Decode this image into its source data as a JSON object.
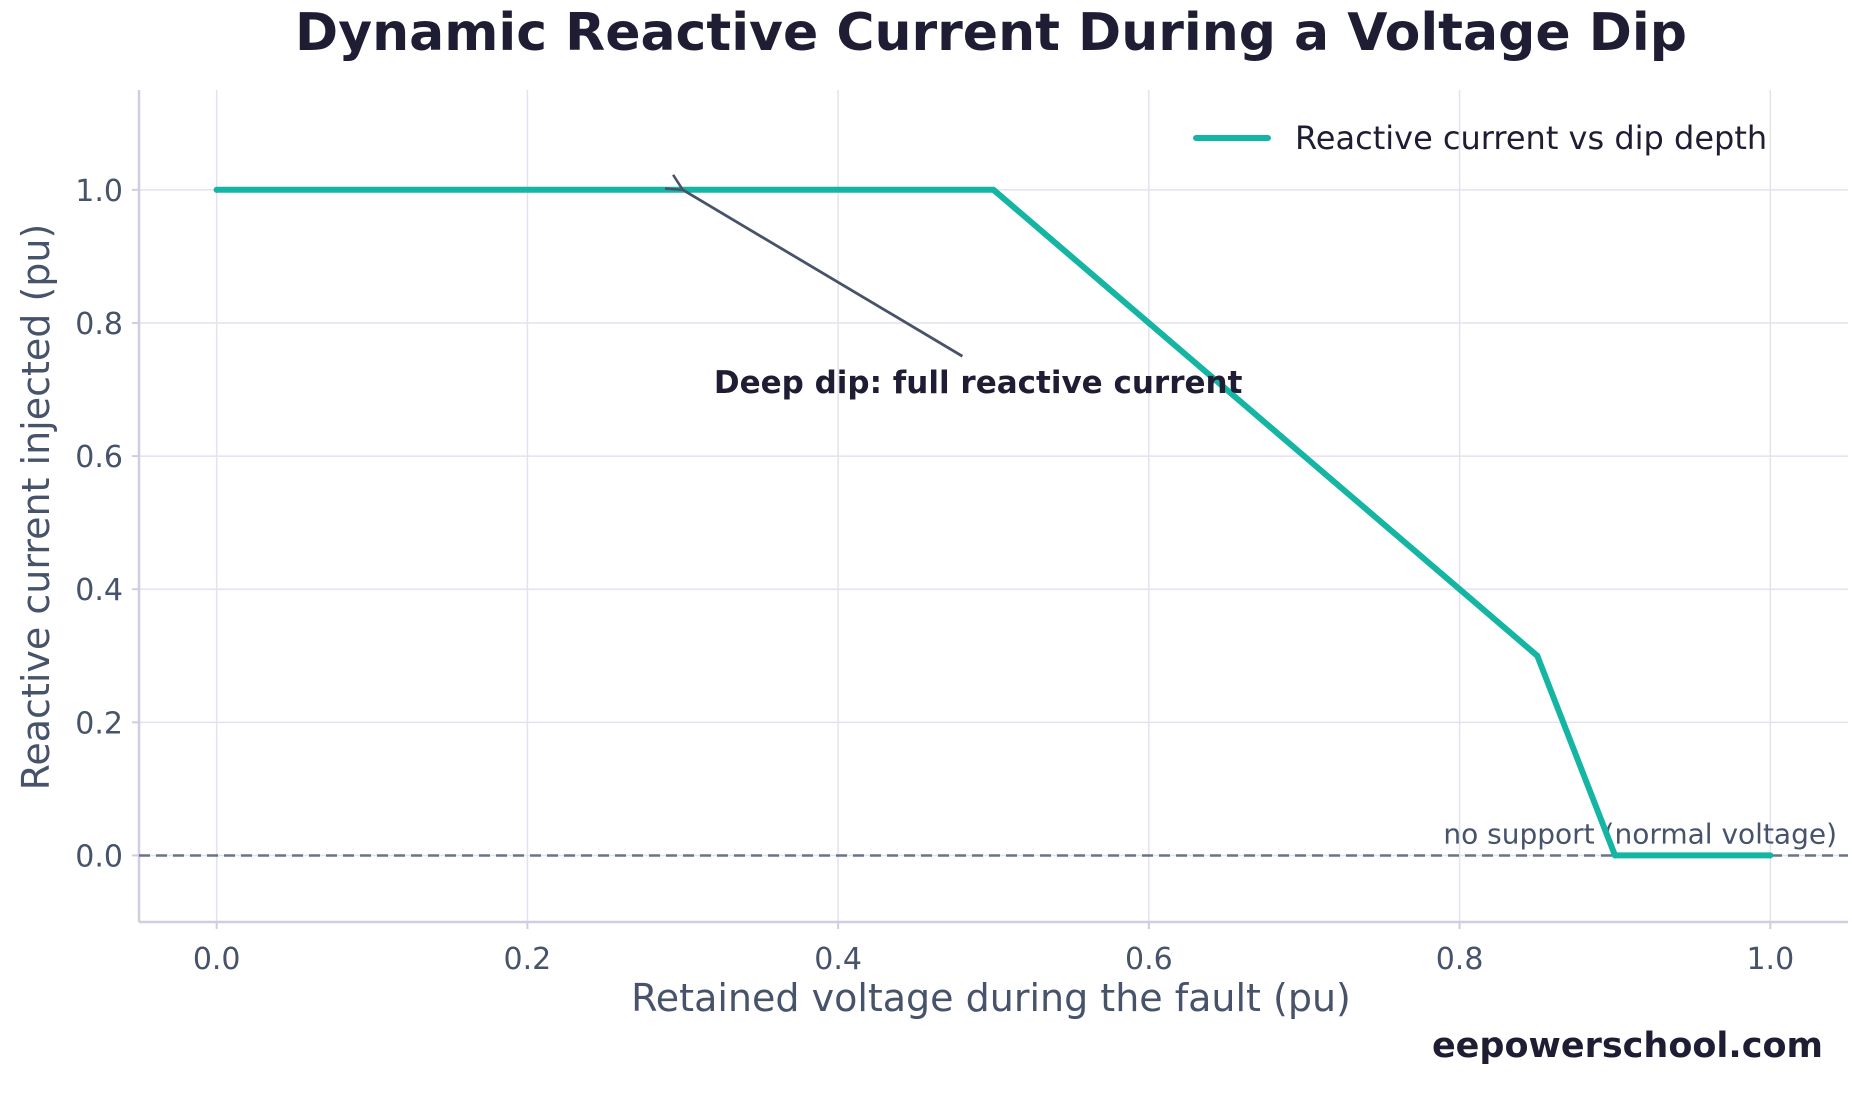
{
  "chart_data": {
    "type": "line",
    "title": "Dynamic Reactive Current During a Voltage Dip",
    "xlabel": "Retained voltage during the fault (pu)",
    "ylabel": "Reactive current injected (pu)",
    "xlim": [
      -0.05,
      1.05
    ],
    "ylim": [
      -0.1,
      1.15
    ],
    "xticks": [
      "0.0",
      "0.2",
      "0.4",
      "0.6",
      "0.8",
      "1.0"
    ],
    "yticks": [
      "0.0",
      "0.2",
      "0.4",
      "0.6",
      "0.8",
      "1.0"
    ],
    "grid": true,
    "legend_position": "top-right",
    "series": [
      {
        "name": "Reactive current vs dip depth",
        "color": "#15b5a4",
        "x": [
          0.0,
          0.5,
          0.6,
          0.7,
          0.8,
          0.85,
          0.9,
          1.0
        ],
        "y": [
          1.0,
          1.0,
          0.8,
          0.6,
          0.4,
          0.3,
          0.0,
          0.0
        ]
      }
    ],
    "reference_line": {
      "y": 0.0,
      "style": "dashed",
      "color": "#6b7388",
      "label": "no support (normal voltage)"
    },
    "annotation": {
      "text": "Deep dip: full reactive current",
      "points_to": [
        0.3,
        1.0
      ],
      "arrow_tail": [
        0.48,
        0.75
      ],
      "text_anchor": [
        0.32,
        0.71
      ]
    },
    "watermark": "eepowerschool.com"
  }
}
